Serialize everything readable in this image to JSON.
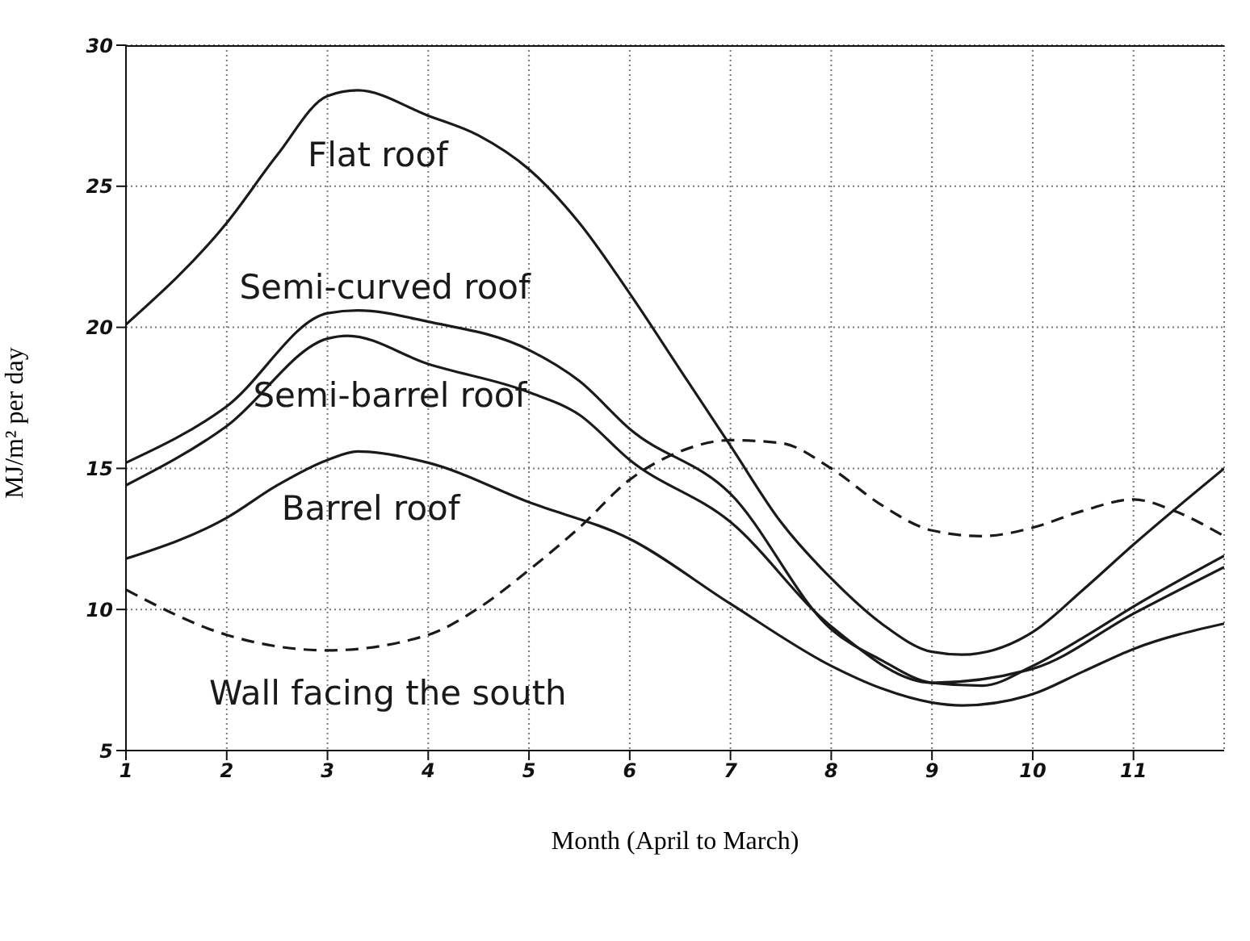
{
  "chart_data": {
    "type": "line",
    "xlabel": "Month (April to March)",
    "ylabel": "MJ/m² per day",
    "xlim": [
      1,
      11.9
    ],
    "xticks": [
      1,
      2,
      3,
      4,
      5,
      6,
      7,
      8,
      9,
      10,
      11
    ],
    "ylim": [
      5,
      30
    ],
    "yticks": [
      5,
      10,
      15,
      20,
      25,
      30
    ],
    "grid": true,
    "marker": "none",
    "series": [
      {
        "name": "Flat roof",
        "color": "#1a1a1a",
        "line_style": "solid",
        "x": [
          1,
          2,
          2.5,
          3,
          3.3,
          4,
          4.5,
          5,
          5.5,
          6,
          6.5,
          7,
          7.5,
          8,
          8.5,
          9,
          9.3,
          10,
          10.5,
          11,
          11.9
        ],
        "values": [
          20.1,
          23.7,
          26.1,
          28.2,
          28.4,
          27.5,
          26.8,
          25.6,
          23.7,
          21.2,
          18.5,
          15.8,
          13.1,
          11.1,
          9.5,
          8.5,
          8.4,
          9.2,
          10.7,
          12.3,
          15.0
        ]
      },
      {
        "name": "Semi-curved roof",
        "color": "#1a1a1a",
        "line_style": "solid",
        "x": [
          1,
          2,
          3,
          3.3,
          4,
          5,
          5.5,
          6,
          7,
          8,
          8.5,
          9,
          9.5,
          10,
          10.5,
          11,
          11.9
        ],
        "values": [
          15.2,
          17.2,
          20.5,
          20.6,
          20.2,
          19.2,
          18.1,
          16.4,
          14.1,
          9.3,
          8.2,
          7.4,
          7.3,
          8.0,
          9.0,
          10.1,
          11.9
        ]
      },
      {
        "name": "Semi-barrel roof",
        "color": "#1a1a1a",
        "line_style": "solid",
        "x": [
          1,
          2,
          3,
          3.2,
          4,
          5,
          5.5,
          6,
          7,
          8,
          9,
          10,
          11,
          11.9
        ],
        "values": [
          14.4,
          16.5,
          19.6,
          19.7,
          18.7,
          17.7,
          16.9,
          15.3,
          13.1,
          9.4,
          7.4,
          7.9,
          9.85,
          11.5
        ]
      },
      {
        "name": "Barrel roof",
        "color": "#1a1a1a",
        "line_style": "solid",
        "x": [
          1,
          2,
          2.5,
          3,
          3.3,
          4,
          5,
          6,
          7,
          8,
          8.5,
          9,
          9.3,
          10,
          10.5,
          11,
          11.9
        ],
        "values": [
          11.8,
          13.25,
          14.4,
          15.3,
          15.6,
          15.2,
          13.8,
          12.5,
          10.2,
          8.0,
          7.2,
          6.7,
          6.6,
          7.0,
          7.8,
          8.6,
          9.5
        ]
      },
      {
        "name": "Wall facing the south",
        "color": "#1a1a1a",
        "line_style": "dashed",
        "x": [
          1,
          2,
          3,
          4,
          4.5,
          5,
          5.5,
          6,
          6.5,
          7,
          7.5,
          8,
          8.5,
          9,
          9.5,
          10,
          10.5,
          11,
          11.4,
          11.9
        ],
        "values": [
          10.7,
          9.1,
          8.55,
          9.1,
          10.05,
          11.4,
          12.9,
          14.6,
          15.6,
          16.0,
          15.9,
          15.0,
          13.7,
          12.8,
          12.6,
          12.9,
          13.5,
          13.9,
          13.5,
          12.6
        ]
      }
    ]
  }
}
